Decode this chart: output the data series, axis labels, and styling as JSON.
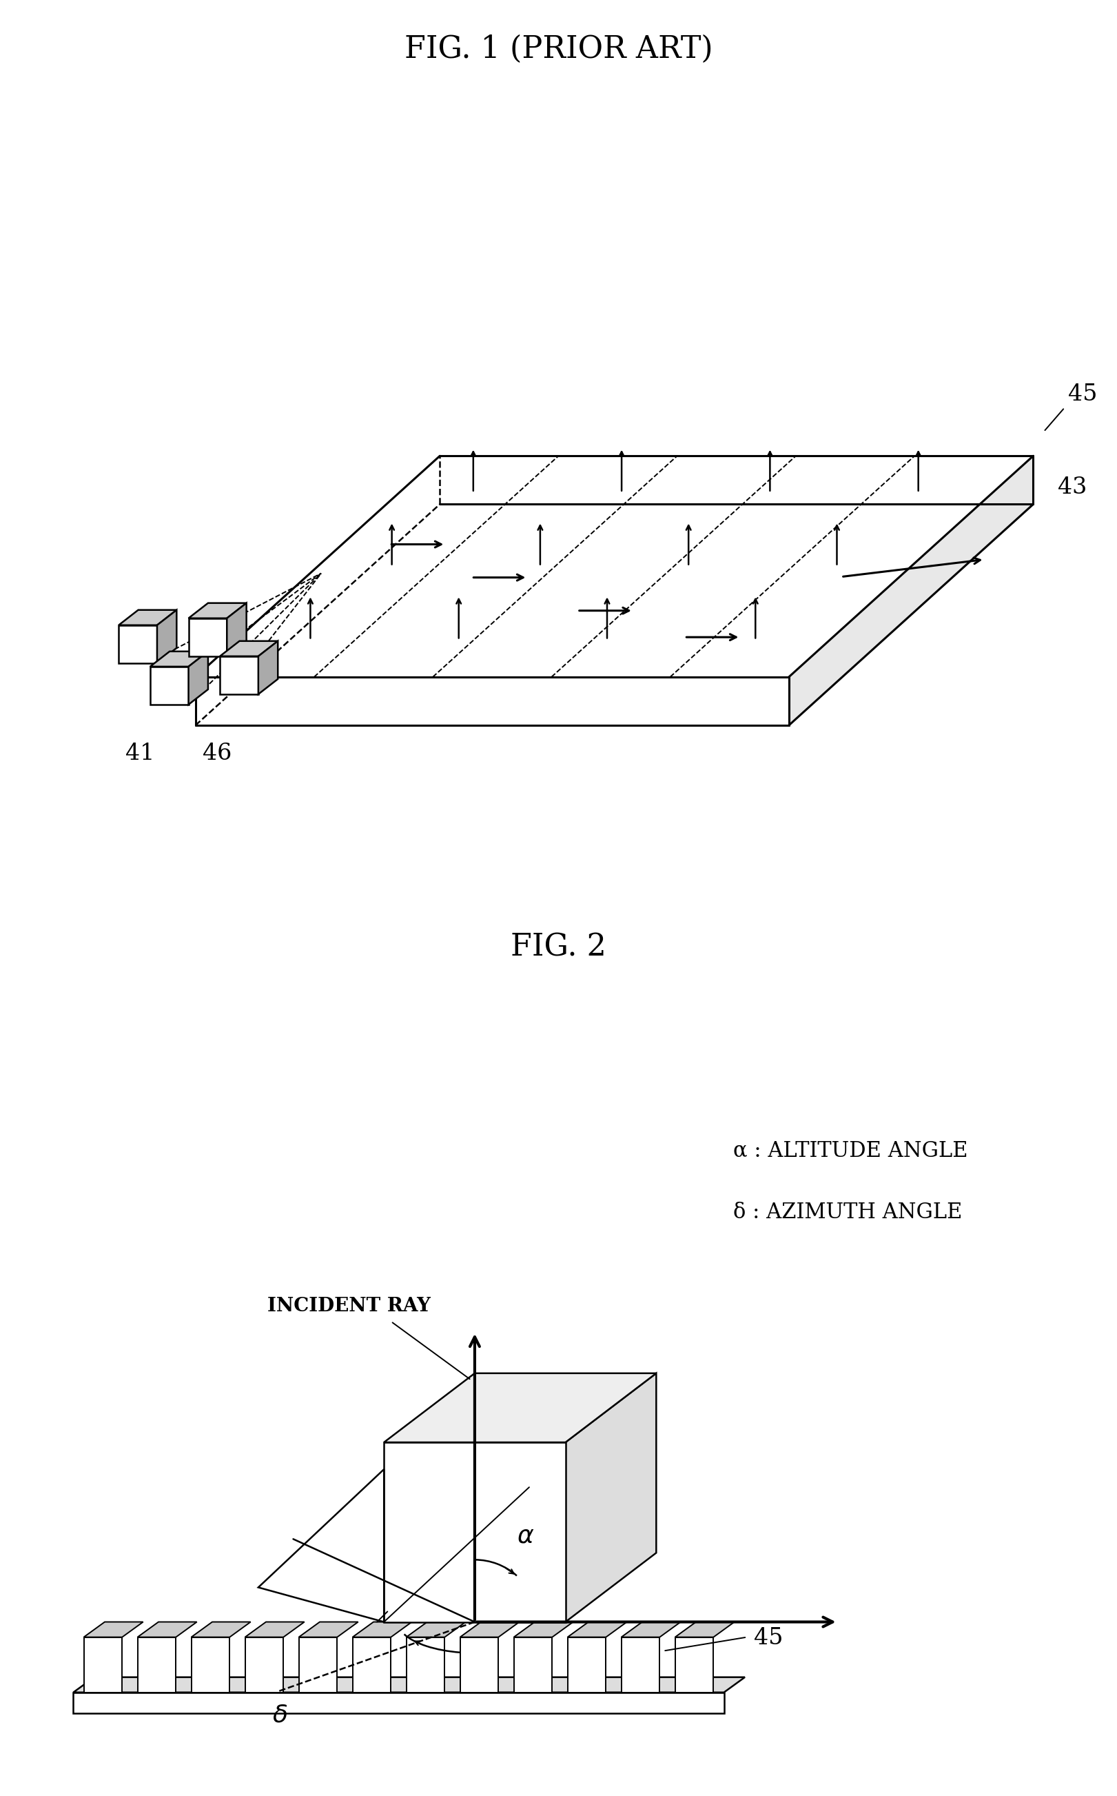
{
  "fig1_title": "FIG. 1 (PRIOR ART)",
  "fig2_title": "FIG. 2",
  "label_41": "41",
  "label_43": "43",
  "label_45_fig1": "45",
  "label_46": "46",
  "label_45_fig2": "45",
  "incident_ray_label": "INCIDENT RAY",
  "alpha_label": "α : ALTITUDE ANGLE",
  "delta_label": "δ : AZIMUTH ANGLE",
  "bg_color": "#ffffff",
  "line_color": "#000000",
  "title_fontsize": 32,
  "label_fontsize": 24,
  "legend_fontsize": 22
}
